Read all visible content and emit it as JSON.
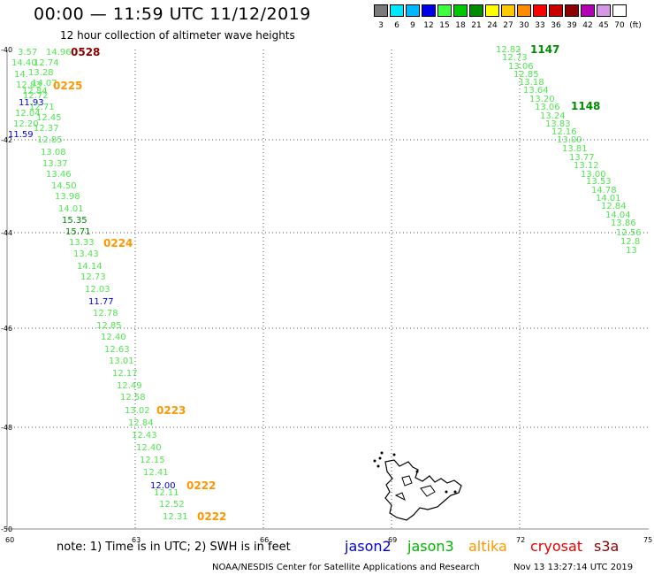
{
  "header": {
    "title": "00:00 — 11:59 UTC 11/12/2019",
    "subtitle": "12 hour collection of altimeter wave heights"
  },
  "scale": {
    "unit": "(ft)",
    "bins": [
      {
        "label": "3",
        "color": "#7a7a7a"
      },
      {
        "label": "6",
        "color": "#00e8ff"
      },
      {
        "label": "9",
        "color": "#00b8ff"
      },
      {
        "label": "12",
        "color": "#0000e6"
      },
      {
        "label": "15",
        "color": "#40ff40"
      },
      {
        "label": "18",
        "color": "#00c800"
      },
      {
        "label": "21",
        "color": "#008c00"
      },
      {
        "label": "24",
        "color": "#ffff00"
      },
      {
        "label": "27",
        "color": "#ffc800"
      },
      {
        "label": "30",
        "color": "#ff8c00"
      },
      {
        "label": "33",
        "color": "#ff0000"
      },
      {
        "label": "36",
        "color": "#c80000"
      },
      {
        "label": "39",
        "color": "#8c0000"
      },
      {
        "label": "42",
        "color": "#b400b4"
      },
      {
        "label": "45",
        "color": "#d896e8"
      },
      {
        "label": "70",
        "color": "#ffffff"
      }
    ]
  },
  "axes": {
    "lon_ticks": [
      "60",
      "63",
      "66",
      "69",
      "72",
      "75"
    ],
    "lat_ticks": [
      "-40",
      "-42",
      "-44",
      "-46",
      "-48",
      "-50"
    ]
  },
  "map_data": {
    "colors": {
      "bright_green": "#50e650",
      "dark_green": "#008c00",
      "blue": "#0000e6",
      "orange": "#ff9600",
      "dark_red": "#8c0000"
    },
    "track_labels_west": [
      {
        "text": "0528",
        "color": "dark_red"
      },
      {
        "text": "0225",
        "color": "orange"
      },
      {
        "text": "0224",
        "color": "orange"
      },
      {
        "text": "0223",
        "color": "orange"
      },
      {
        "text": "0222",
        "color": "orange"
      },
      {
        "text": "0222",
        "color": "orange"
      }
    ],
    "track_labels_east": [
      {
        "text": "1147",
        "color": "dark_green"
      },
      {
        "text": "1148",
        "color": "dark_green"
      }
    ],
    "west_track_values": [
      {
        "v": "3.57",
        "c": "bright_green"
      },
      {
        "v": "14.96",
        "c": "bright_green"
      },
      {
        "v": "14.40",
        "c": "bright_green"
      },
      {
        "v": "12.74",
        "c": "bright_green"
      },
      {
        "v": "13.28",
        "c": "bright_green"
      },
      {
        "v": "14.",
        "c": "bright_green"
      },
      {
        "v": "14.07",
        "c": "bright_green"
      },
      {
        "v": "12.83",
        "c": "bright_green"
      },
      {
        "v": "12.84",
        "c": "bright_green"
      },
      {
        "v": "12.72",
        "c": "bright_green"
      },
      {
        "v": "11.93",
        "c": "blue"
      },
      {
        "v": "12.71",
        "c": "bright_green"
      },
      {
        "v": "12.04",
        "c": "bright_green"
      },
      {
        "v": "12.45",
        "c": "bright_green"
      },
      {
        "v": "12.20",
        "c": "bright_green"
      },
      {
        "v": "12.37",
        "c": "bright_green"
      },
      {
        "v": "11.59",
        "c": "blue"
      },
      {
        "v": "12.85",
        "c": "bright_green"
      },
      {
        "v": "13.08",
        "c": "bright_green"
      },
      {
        "v": "13.37",
        "c": "bright_green"
      },
      {
        "v": "13.46",
        "c": "bright_green"
      },
      {
        "v": "14.50",
        "c": "bright_green"
      },
      {
        "v": "13.98",
        "c": "bright_green"
      },
      {
        "v": "14.01",
        "c": "bright_green"
      },
      {
        "v": "15.35",
        "c": "dark_green"
      },
      {
        "v": "15.71",
        "c": "dark_green"
      },
      {
        "v": "13.33",
        "c": "bright_green"
      },
      {
        "v": "13.43",
        "c": "bright_green"
      },
      {
        "v": "14.14",
        "c": "bright_green"
      },
      {
        "v": "12.73",
        "c": "bright_green"
      },
      {
        "v": "12.03",
        "c": "bright_green"
      },
      {
        "v": "11.77",
        "c": "blue"
      },
      {
        "v": "12.78",
        "c": "bright_green"
      },
      {
        "v": "12.85",
        "c": "bright_green"
      },
      {
        "v": "12.40",
        "c": "bright_green"
      },
      {
        "v": "12.63",
        "c": "bright_green"
      },
      {
        "v": "13.01",
        "c": "bright_green"
      },
      {
        "v": "12.17",
        "c": "bright_green"
      },
      {
        "v": "12.49",
        "c": "bright_green"
      },
      {
        "v": "12.58",
        "c": "bright_green"
      },
      {
        "v": "13.02",
        "c": "bright_green"
      },
      {
        "v": "12.84",
        "c": "bright_green"
      },
      {
        "v": "12.43",
        "c": "bright_green"
      },
      {
        "v": "12.40",
        "c": "bright_green"
      },
      {
        "v": "12.15",
        "c": "bright_green"
      },
      {
        "v": "12.41",
        "c": "bright_green"
      },
      {
        "v": "12.00",
        "c": "blue"
      },
      {
        "v": "12.11",
        "c": "bright_green"
      },
      {
        "v": "12.52",
        "c": "bright_green"
      },
      {
        "v": "12.31",
        "c": "bright_green"
      }
    ],
    "east_track_values": [
      {
        "v": "12.82",
        "c": "bright_green"
      },
      {
        "v": "12.73",
        "c": "bright_green"
      },
      {
        "v": "13.06",
        "c": "bright_green"
      },
      {
        "v": "12.85",
        "c": "bright_green"
      },
      {
        "v": "13.18",
        "c": "bright_green"
      },
      {
        "v": "13.64",
        "c": "bright_green"
      },
      {
        "v": "13.20",
        "c": "bright_green"
      },
      {
        "v": "13.06",
        "c": "bright_green"
      },
      {
        "v": "13.24",
        "c": "bright_green"
      },
      {
        "v": "13.83",
        "c": "bright_green"
      },
      {
        "v": "12.16",
        "c": "bright_green"
      },
      {
        "v": "13.00",
        "c": "bright_green"
      },
      {
        "v": "13.81",
        "c": "bright_green"
      },
      {
        "v": "13.77",
        "c": "bright_green"
      },
      {
        "v": "13.12",
        "c": "bright_green"
      },
      {
        "v": "13.00",
        "c": "bright_green"
      },
      {
        "v": "13.53",
        "c": "bright_green"
      },
      {
        "v": "14.78",
        "c": "bright_green"
      },
      {
        "v": "14.01",
        "c": "bright_green"
      },
      {
        "v": "12.84",
        "c": "bright_green"
      },
      {
        "v": "14.04",
        "c": "bright_green"
      },
      {
        "v": "13.86",
        "c": "bright_green"
      },
      {
        "v": "12.56",
        "c": "bright_green"
      },
      {
        "v": "12.8",
        "c": "bright_green"
      },
      {
        "v": "13",
        "c": "bright_green"
      }
    ]
  },
  "footer": {
    "note": "note:  1) Time is in UTC;  2) SWH is in feet",
    "satellites": [
      {
        "name": "jason2",
        "color": "#0000e6"
      },
      {
        "name": "jason3",
        "color": "#00b400"
      },
      {
        "name": "altika",
        "color": "#ff9600"
      },
      {
        "name": "cryosat",
        "color": "#e60000"
      },
      {
        "name": "s3a",
        "color": "#8c0000"
      }
    ],
    "credit": "NOAA/NESDIS Center for Satellite Applications and Research",
    "timestamp": "Nov 13 13:27:14 UTC 2019"
  }
}
